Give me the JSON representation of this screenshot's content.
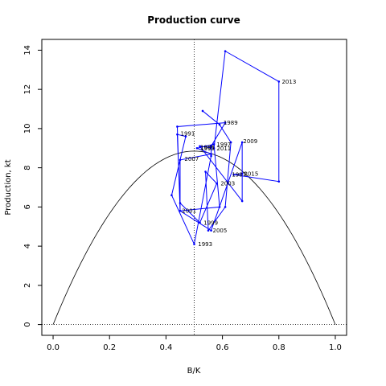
{
  "chart_data": {
    "type": "line",
    "title": "Production curve",
    "xlabel": "B/K",
    "ylabel": "Production, kt",
    "xlim": [
      -0.04,
      1.04
    ],
    "ylim": [
      -0.55,
      14.55
    ],
    "xticks": [
      0.0,
      0.2,
      0.4,
      0.6,
      0.8,
      1.0
    ],
    "xtick_labels": [
      "0.0",
      "0.2",
      "0.4",
      "0.6",
      "0.8",
      "1.0"
    ],
    "yticks": [
      0,
      2,
      4,
      6,
      8,
      10,
      12,
      14
    ],
    "ytick_labels": [
      "0",
      "2",
      "4",
      "6",
      "8",
      "10",
      "12",
      "14"
    ],
    "grid": false,
    "reference_lines": {
      "vertical_x": 0.5,
      "horizontal_y": 0
    },
    "colors": {
      "trajectory": "#0000ff",
      "curve": "#000000"
    },
    "curve": {
      "name": "",
      "form": "parabola",
      "peak_x": 0.5,
      "peak_y": 8.85,
      "x_range": [
        0,
        1
      ]
    },
    "series": [
      {
        "name": "",
        "points": [
          {
            "x": 0.53,
            "y": 10.9
          },
          {
            "x": 0.59,
            "y": 10.2
          },
          {
            "x": 0.63,
            "y": 9.3
          },
          {
            "x": 0.61,
            "y": 6.0
          },
          {
            "x": 0.55,
            "y": 4.8
          },
          {
            "x": 0.54,
            "y": 7.8
          },
          {
            "x": 0.58,
            "y": 7.2
          },
          {
            "x": 0.52,
            "y": 5.2
          },
          {
            "x": 0.45,
            "y": 6.2
          },
          {
            "x": 0.44,
            "y": 9.7
          },
          {
            "x": 0.47,
            "y": 9.6
          },
          {
            "x": 0.42,
            "y": 6.6
          },
          {
            "x": 0.5,
            "y": 4.1
          },
          {
            "x": 0.56,
            "y": 8.6
          },
          {
            "x": 0.56,
            "y": 9.1
          },
          {
            "x": 0.61,
            "y": 10.3
          },
          {
            "x": 0.44,
            "y": 10.1
          },
          {
            "x": 0.45,
            "y": 5.8
          },
          {
            "x": 0.59,
            "y": 6.0
          },
          {
            "x": 0.57,
            "y": 9.2
          },
          {
            "x": 0.51,
            "y": 9.0
          },
          {
            "x": 0.56,
            "y": 8.7
          },
          {
            "x": 0.45,
            "y": 8.4
          },
          {
            "x": 0.45,
            "y": 5.8
          },
          {
            "x": 0.56,
            "y": 4.8
          },
          {
            "x": 0.67,
            "y": 9.3
          },
          {
            "x": 0.67,
            "y": 6.3
          },
          {
            "x": 0.52,
            "y": 9.1
          },
          {
            "x": 0.57,
            "y": 9.0
          },
          {
            "x": 0.61,
            "y": 13.95
          },
          {
            "x": 0.8,
            "y": 12.4
          },
          {
            "x": 0.8,
            "y": 7.3
          },
          {
            "x": 0.64,
            "y": 7.65
          },
          {
            "x": 0.67,
            "y": 7.7
          },
          {
            "x": 0.67,
            "y": 7.7
          }
        ]
      }
    ],
    "annotations": [
      {
        "text": "1985",
        "x": 0.513,
        "y": 9.05
      },
      {
        "text": "1987",
        "x": 0.625,
        "y": 7.65
      },
      {
        "text": "1989",
        "x": 0.595,
        "y": 10.3
      },
      {
        "text": "1991",
        "x": 0.443,
        "y": 9.75
      },
      {
        "text": "1993",
        "x": 0.505,
        "y": 4.1
      },
      {
        "text": "1995",
        "x": 0.513,
        "y": 9.0
      },
      {
        "text": "1997",
        "x": 0.571,
        "y": 9.2
      },
      {
        "text": "1999",
        "x": 0.525,
        "y": 5.2
      },
      {
        "text": "2001",
        "x": 0.448,
        "y": 5.8
      },
      {
        "text": "2003",
        "x": 0.585,
        "y": 7.2
      },
      {
        "text": "2005",
        "x": 0.557,
        "y": 4.8
      },
      {
        "text": "2007",
        "x": 0.457,
        "y": 8.45
      },
      {
        "text": "2009",
        "x": 0.665,
        "y": 9.35
      },
      {
        "text": "2011",
        "x": 0.571,
        "y": 9.0
      },
      {
        "text": "2013",
        "x": 0.802,
        "y": 12.4
      },
      {
        "text": "2015",
        "x": 0.668,
        "y": 7.7
      }
    ]
  }
}
